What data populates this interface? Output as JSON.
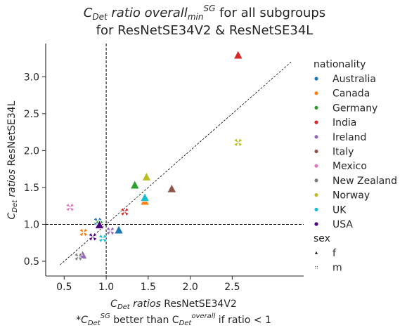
{
  "chart_data": {
    "type": "scatter",
    "title_line1": {
      "prefix": "C",
      "prefix_sub": "Det",
      "middle": " ratio overall",
      "middle_sub": "min",
      "middle_sup": "SG",
      "suffix": " for all subgroups"
    },
    "title_line2": "for ResNetSE34V2 & ResNetSE34L",
    "xlabel": {
      "c": "C",
      "sub": "Det",
      "ital": " ratios",
      "rest": " ResNetSE34V2"
    },
    "ylabel": {
      "c": "C",
      "sub": "Det",
      "ital": " ratios",
      "rest": " ResNetSE34L"
    },
    "footnote": {
      "prefix": "*C",
      "sub1": "Det",
      "sup1": "SG",
      "middle": " better than C",
      "sub2": "Det",
      "sup2": "overall",
      "suffix": " if ratio < 1"
    },
    "xlim": [
      0.28,
      3.35
    ],
    "ylim": [
      0.3,
      3.45
    ],
    "xticks": [
      0.5,
      1.0,
      1.5,
      2.0,
      2.5
    ],
    "xtick_labels": [
      "0.5",
      "1.0",
      "1.5",
      "2.0",
      "2.5"
    ],
    "yticks": [
      0.5,
      1.0,
      1.5,
      2.0,
      2.5,
      3.0
    ],
    "ytick_labels": [
      "0.5",
      "1.0",
      "1.5",
      "2.0",
      "2.5",
      "3.0"
    ],
    "reference_lines": {
      "vertical_x": 1.0,
      "horizontal_y": 1.0,
      "diagonal": [
        [
          0.45,
          0.45
        ],
        [
          3.2,
          3.2
        ]
      ]
    },
    "legend": {
      "position": "right",
      "hue_title": "nationality",
      "style_title": "sex",
      "nationalities": [
        {
          "name": "Australia",
          "color": "#1f77b4"
        },
        {
          "name": "Canada",
          "color": "#ff7f0e"
        },
        {
          "name": "Germany",
          "color": "#2ca02c"
        },
        {
          "name": "India",
          "color": "#d62728"
        },
        {
          "name": "Ireland",
          "color": "#9467bd"
        },
        {
          "name": "Italy",
          "color": "#8c564b"
        },
        {
          "name": "Mexico",
          "color": "#e377c2"
        },
        {
          "name": "New Zealand",
          "color": "#7f7f7f"
        },
        {
          "name": "Norway",
          "color": "#bcbd22"
        },
        {
          "name": "UK",
          "color": "#17becf"
        },
        {
          "name": "USA",
          "color": "#4b0082"
        }
      ],
      "sexes": [
        {
          "name": "f",
          "marker": "triangle"
        },
        {
          "name": "m",
          "marker": "x"
        }
      ]
    },
    "points": [
      {
        "nationality": "Australia",
        "sex": "f",
        "x": 1.15,
        "y": 0.92
      },
      {
        "nationality": "Australia",
        "sex": "m",
        "x": 0.9,
        "y": 1.04
      },
      {
        "nationality": "Canada",
        "sex": "f",
        "x": 1.46,
        "y": 1.31
      },
      {
        "nationality": "Canada",
        "sex": "m",
        "x": 0.73,
        "y": 0.89
      },
      {
        "nationality": "Germany",
        "sex": "f",
        "x": 1.34,
        "y": 1.53
      },
      {
        "nationality": "Germany",
        "sex": "m",
        "x": 0.92,
        "y": 1.0
      },
      {
        "nationality": "India",
        "sex": "f",
        "x": 2.57,
        "y": 3.29
      },
      {
        "nationality": "India",
        "sex": "m",
        "x": 1.22,
        "y": 1.17
      },
      {
        "nationality": "Ireland",
        "sex": "f",
        "x": 0.72,
        "y": 0.58
      },
      {
        "nationality": "Ireland",
        "sex": "m",
        "x": 1.05,
        "y": 0.91
      },
      {
        "nationality": "Italy",
        "sex": "f",
        "x": 1.78,
        "y": 1.48
      },
      {
        "nationality": "Mexico",
        "sex": "m",
        "x": 0.57,
        "y": 1.23
      },
      {
        "nationality": "New Zealand",
        "sex": "m",
        "x": 0.67,
        "y": 0.56
      },
      {
        "nationality": "Norway",
        "sex": "f",
        "x": 1.48,
        "y": 1.64
      },
      {
        "nationality": "Norway",
        "sex": "m",
        "x": 2.57,
        "y": 2.11
      },
      {
        "nationality": "UK",
        "sex": "f",
        "x": 1.46,
        "y": 1.36
      },
      {
        "nationality": "UK",
        "sex": "m",
        "x": 0.96,
        "y": 0.81
      },
      {
        "nationality": "USA",
        "sex": "f",
        "x": 0.92,
        "y": 0.99
      },
      {
        "nationality": "USA",
        "sex": "m",
        "x": 0.84,
        "y": 0.83
      }
    ],
    "grid": false
  }
}
